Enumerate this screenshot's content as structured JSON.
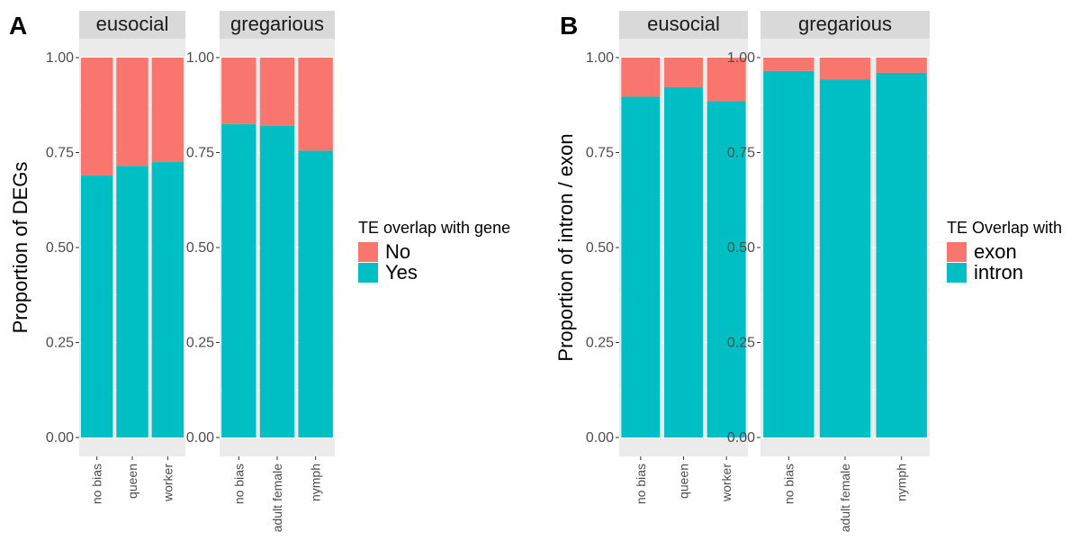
{
  "chart_data": [
    {
      "type": "bar",
      "stacked": true,
      "panel_label": "A",
      "ylabel": "Proportion of DEGs",
      "ylim": [
        0,
        1
      ],
      "yticks": [
        "0.00",
        "0.25",
        "0.50",
        "0.75",
        "1.00"
      ],
      "legend": {
        "title": "TE overlap with gene",
        "placement": "right",
        "entries": [
          {
            "name": "No",
            "color": "#F8766D"
          },
          {
            "name": "Yes",
            "color": "#00BFC4"
          }
        ]
      },
      "facets": [
        {
          "name": "eusocial",
          "categories": [
            "no bias",
            "queen",
            "worker"
          ],
          "series": [
            {
              "name": "Yes",
              "values": [
                0.69,
                0.715,
                0.725
              ]
            },
            {
              "name": "No",
              "values": [
                0.31,
                0.285,
                0.275
              ]
            }
          ]
        },
        {
          "name": "gregarious",
          "categories": [
            "no bias",
            "adult female",
            "nymph"
          ],
          "series": [
            {
              "name": "Yes",
              "values": [
                0.825,
                0.82,
                0.755
              ]
            },
            {
              "name": "No",
              "values": [
                0.175,
                0.18,
                0.245
              ]
            }
          ]
        }
      ]
    },
    {
      "type": "bar",
      "stacked": true,
      "panel_label": "B",
      "ylabel": "Proportion of intron / exon",
      "ylim": [
        0,
        1
      ],
      "yticks": [
        "0.00",
        "0.25",
        "0.50",
        "0.75",
        "1.00"
      ],
      "legend": {
        "title": "TE Overlap with",
        "placement": "right",
        "entries": [
          {
            "name": "exon",
            "color": "#F8766D"
          },
          {
            "name": "intron",
            "color": "#00BFC4"
          }
        ]
      },
      "facets": [
        {
          "name": "eusocial",
          "categories": [
            "no bias",
            "queen",
            "worker"
          ],
          "series": [
            {
              "name": "intron",
              "values": [
                0.897,
                0.922,
                0.885
              ]
            },
            {
              "name": "exon",
              "values": [
                0.103,
                0.078,
                0.115
              ]
            }
          ]
        },
        {
          "name": "gregarious",
          "categories": [
            "no bias",
            "adult female",
            "nymph"
          ],
          "series": [
            {
              "name": "intron",
              "values": [
                0.965,
                0.942,
                0.96
              ]
            },
            {
              "name": "exon",
              "values": [
                0.035,
                0.058,
                0.04
              ]
            }
          ]
        }
      ]
    }
  ]
}
